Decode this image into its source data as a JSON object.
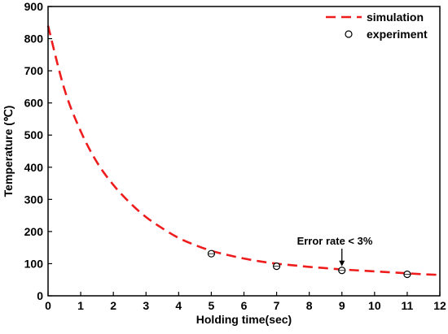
{
  "chart_data": {
    "type": "line",
    "xlabel": "Holding time(sec)",
    "ylabel": "Temperature (℃)",
    "xlim": [
      0,
      12
    ],
    "ylim": [
      0,
      900
    ],
    "xticks": [
      0,
      1,
      2,
      3,
      4,
      5,
      6,
      7,
      8,
      9,
      10,
      11,
      12
    ],
    "yticks": [
      0,
      100,
      200,
      300,
      400,
      500,
      600,
      700,
      800,
      900
    ],
    "grid": false,
    "legend_position": "top-right",
    "colors": {
      "simulation": "#ee1c1c",
      "experiment": "#000000"
    },
    "series": [
      {
        "name": "simulation",
        "style": "dashed-line",
        "x": [
          0,
          0.5,
          1,
          1.5,
          2,
          2.5,
          3,
          3.5,
          4,
          4.5,
          5,
          5.5,
          6,
          6.5,
          7,
          7.5,
          8,
          8.5,
          9,
          9.5,
          10,
          10.5,
          11,
          11.5,
          12
        ],
        "y": [
          840,
          643,
          512,
          415,
          345,
          290,
          245,
          210,
          180,
          158,
          140,
          127,
          116,
          107,
          100,
          95,
          90,
          86,
          82,
          79,
          76,
          73,
          70,
          67,
          65
        ]
      },
      {
        "name": "experiment",
        "style": "open-circle",
        "x": [
          5,
          7,
          9,
          11
        ],
        "y": [
          131,
          92,
          79,
          67
        ]
      }
    ],
    "annotations": [
      {
        "text": "Error rate < 3%",
        "x": 9,
        "y": 79
      }
    ]
  }
}
